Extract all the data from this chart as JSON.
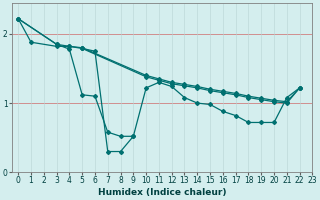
{
  "xlabel": "Humidex (Indice chaleur)",
  "bg_color": "#d4eeee",
  "grid_color_h": "#d08080",
  "grid_color_v": "#b8d4d4",
  "line_color": "#007070",
  "xlim": [
    -0.5,
    23
  ],
  "ylim": [
    0,
    2.45
  ],
  "xticks": [
    0,
    1,
    2,
    3,
    4,
    5,
    6,
    7,
    8,
    9,
    10,
    11,
    12,
    13,
    14,
    15,
    16,
    17,
    18,
    19,
    20,
    21,
    22,
    23
  ],
  "yticks": [
    0,
    1,
    2
  ],
  "line_top_x": [
    0,
    1,
    3,
    4,
    5,
    10,
    11,
    12,
    13,
    14,
    15,
    16,
    17,
    18,
    19,
    20,
    21,
    22
  ],
  "line_top_y": [
    2.22,
    1.88,
    1.82,
    1.82,
    1.8,
    1.4,
    1.35,
    1.3,
    1.27,
    1.24,
    1.2,
    1.17,
    1.14,
    1.1,
    1.07,
    1.04,
    1.02,
    1.22
  ],
  "line_mid_x": [
    0,
    3,
    4,
    5,
    10,
    11,
    12,
    13,
    14,
    15,
    16,
    17,
    18,
    19,
    20,
    21,
    22
  ],
  "line_mid_y": [
    2.22,
    1.85,
    1.82,
    1.79,
    1.38,
    1.33,
    1.28,
    1.25,
    1.22,
    1.18,
    1.15,
    1.12,
    1.08,
    1.05,
    1.02,
    1.0,
    1.22
  ],
  "line_bot_x": [
    0,
    3,
    4,
    5,
    6,
    7,
    8,
    9,
    10,
    11,
    12,
    13,
    14,
    15,
    16,
    17,
    18,
    19,
    20,
    21,
    22
  ],
  "line_bot_y": [
    2.22,
    1.85,
    1.78,
    1.12,
    1.1,
    0.58,
    0.52,
    0.52,
    1.22,
    1.3,
    1.24,
    1.08,
    1.0,
    0.98,
    0.88,
    0.82,
    0.72,
    0.72,
    0.72,
    1.08,
    1.22
  ],
  "line_seg_x": [
    5,
    6,
    7,
    8,
    9
  ],
  "line_seg_y": [
    1.79,
    1.75,
    0.3,
    0.3,
    0.52
  ],
  "marker": "D",
  "markersize": 2.0,
  "linewidth": 0.9,
  "xlabel_fontsize": 6.5,
  "tick_fontsize": 5.5
}
